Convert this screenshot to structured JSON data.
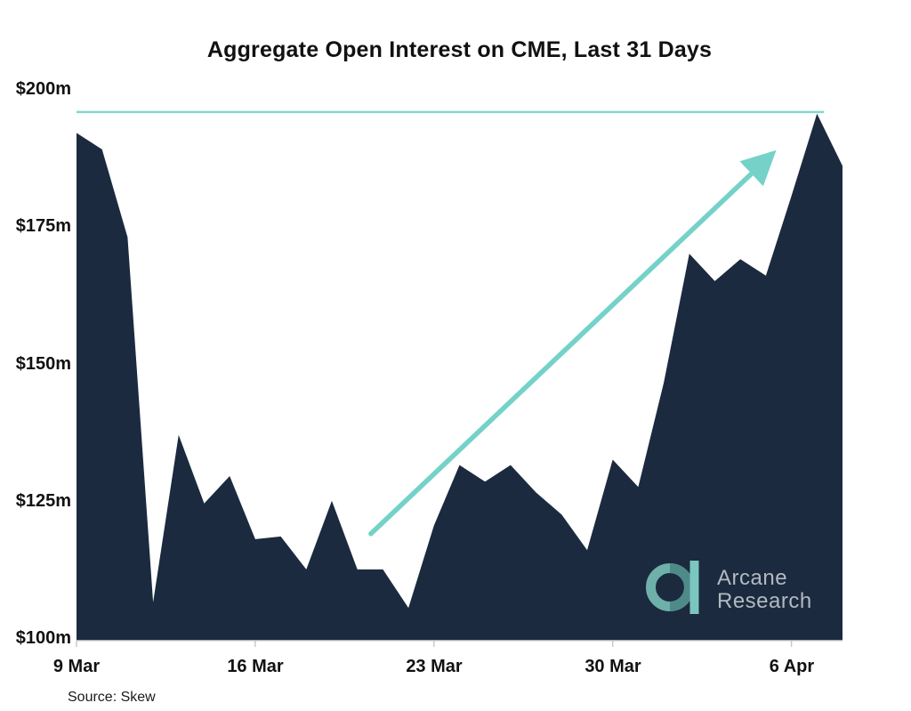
{
  "chart_data": {
    "type": "area",
    "title": "Aggregate Open Interest on CME, Last 31 Days",
    "xlabel": "",
    "ylabel": "",
    "ylim": [
      100,
      200
    ],
    "grid": false,
    "legend": false,
    "x": [
      "9 Mar",
      "10 Mar",
      "11 Mar",
      "12 Mar",
      "13 Mar",
      "14 Mar",
      "15 Mar",
      "16 Mar",
      "17 Mar",
      "18 Mar",
      "19 Mar",
      "20 Mar",
      "21 Mar",
      "22 Mar",
      "23 Mar",
      "24 Mar",
      "25 Mar",
      "26 Mar",
      "27 Mar",
      "28 Mar",
      "29 Mar",
      "30 Mar",
      "31 Mar",
      "1 Apr",
      "2 Apr",
      "3 Apr",
      "4 Apr",
      "5 Apr",
      "6 Apr",
      "7 Apr",
      "8 Apr"
    ],
    "values": [
      192,
      189,
      173,
      106.5,
      137,
      124.5,
      129.5,
      118,
      118.5,
      112.5,
      125,
      112.5,
      112.5,
      105.5,
      120.5,
      131.5,
      128.5,
      131.5,
      126.5,
      122.5,
      116,
      132.5,
      127.5,
      146.5,
      170,
      165,
      169,
      166,
      180.5,
      195.5,
      186
    ],
    "units": "$m",
    "y_ticks": [
      {
        "value": 200,
        "label": "$200m"
      },
      {
        "value": 175,
        "label": "$175m"
      },
      {
        "value": 150,
        "label": "$150m"
      },
      {
        "value": 125,
        "label": "$125m"
      },
      {
        "value": 100,
        "label": "$100m"
      }
    ],
    "x_ticks": [
      {
        "i": 0,
        "label": "9 Mar"
      },
      {
        "i": 7,
        "label": "16 Mar"
      },
      {
        "i": 14,
        "label": "23 Mar"
      },
      {
        "i": 21,
        "label": "30 Mar"
      },
      {
        "i": 28,
        "label": "6 Apr"
      }
    ],
    "peak_line": {
      "value": 195.8,
      "span": 0.976
    },
    "arrow": {
      "from_day": 11.53,
      "from_value": 119.0,
      "to_day": 27.1,
      "to_value": 187.5
    },
    "colors": {
      "series": "#1b2a3f",
      "accent": "#74d2c8",
      "peak_line": "#82d8cf",
      "axis": "#d9d9d9",
      "tick": "#c9c9c9",
      "logo_ring_light": "#6fb0ab",
      "logo_ring_dark": "#4e8b88",
      "logo_bar": "#7cc6c0",
      "logo_text": "#b3b9c0"
    }
  },
  "branding": {
    "logo_line1": "Arcane",
    "logo_line2": "Research"
  },
  "source": {
    "label": "Source: Skew"
  }
}
